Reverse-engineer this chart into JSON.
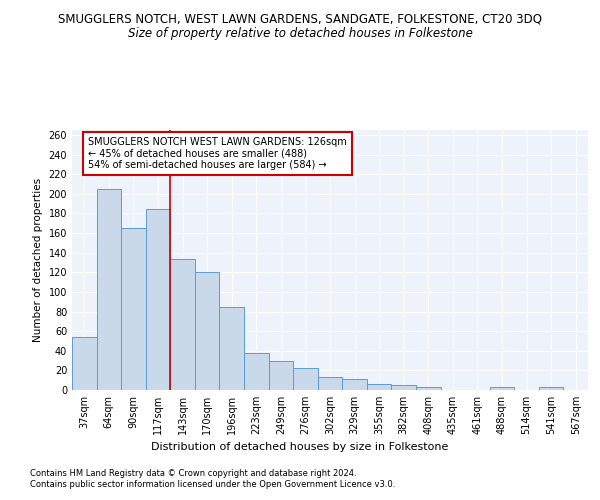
{
  "title": "SMUGGLERS NOTCH, WEST LAWN GARDENS, SANDGATE, FOLKESTONE, CT20 3DQ",
  "subtitle": "Size of property relative to detached houses in Folkestone",
  "xlabel": "Distribution of detached houses by size in Folkestone",
  "ylabel": "Number of detached properties",
  "footnote1": "Contains HM Land Registry data © Crown copyright and database right 2024.",
  "footnote2": "Contains public sector information licensed under the Open Government Licence v3.0.",
  "categories": [
    "37sqm",
    "64sqm",
    "90sqm",
    "117sqm",
    "143sqm",
    "170sqm",
    "196sqm",
    "223sqm",
    "249sqm",
    "276sqm",
    "302sqm",
    "329sqm",
    "355sqm",
    "382sqm",
    "408sqm",
    "435sqm",
    "461sqm",
    "488sqm",
    "514sqm",
    "541sqm",
    "567sqm"
  ],
  "values": [
    54,
    205,
    165,
    184,
    134,
    120,
    85,
    38,
    30,
    22,
    13,
    11,
    6,
    5,
    3,
    0,
    0,
    3,
    0,
    3,
    0
  ],
  "bar_color": "#c9d9ea",
  "bar_edge_color": "#5b9bd5",
  "background_color": "#eef2fb",
  "grid_color": "#ffffff",
  "red_line_color": "#cc0000",
  "red_line_index": 3.5,
  "annotation_text": "SMUGGLERS NOTCH WEST LAWN GARDENS: 126sqm\n← 45% of detached houses are smaller (488)\n54% of semi-detached houses are larger (584) →",
  "annotation_box_color": "#ffffff",
  "annotation_box_edge": "#cc0000",
  "ylim": [
    0,
    265
  ],
  "yticks": [
    0,
    20,
    40,
    60,
    80,
    100,
    120,
    140,
    160,
    180,
    200,
    220,
    240,
    260
  ],
  "title_fontsize": 8.5,
  "subtitle_fontsize": 8.5,
  "ylabel_fontsize": 7.5,
  "xlabel_fontsize": 8,
  "tick_fontsize": 7,
  "annot_fontsize": 7,
  "footnote_fontsize": 6
}
